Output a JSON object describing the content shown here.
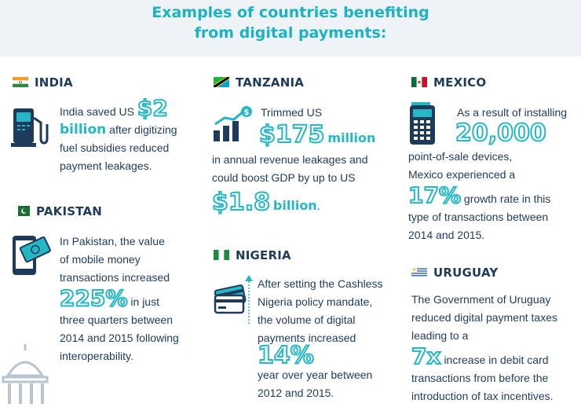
{
  "header": {
    "title_line1": "Examples of countries benefiting",
    "title_line2": "from digital payments:"
  },
  "india": {
    "name": "INDIA",
    "t1": "India saved US",
    "amount": "$2",
    "amount_unit": "billion",
    "t2": "after digitizing",
    "t3": "fuel subsidies reduced",
    "t4": "payment leakages."
  },
  "pakistan": {
    "name": "PAKISTAN",
    "t1": "In Pakistan, the value",
    "t2": "of mobile money",
    "t3": "transactions increased",
    "percent": "225%",
    "t4": "in just",
    "t5": "three quarters between",
    "t6": "2014 and 2015 following",
    "t7": "interoperability."
  },
  "tanzania": {
    "name": "TANZANIA",
    "t1": "Trimmed US",
    "amount": "$175",
    "amount_unit": "million",
    "t2": "in annual revenue leakages and",
    "t3": "could boost GDP by up to US",
    "amount2": "$1.8",
    "amount2_unit": "billion",
    "t4": "."
  },
  "nigeria": {
    "name": "NIGERIA",
    "t1": "After setting the Cashless",
    "t2": "Nigeria policy mandate,",
    "t3": "the volume of digital",
    "t4": "payments increased",
    "percent": "14%",
    "t5": "year over year between",
    "t6": "2012 and 2015."
  },
  "mexico": {
    "name": "MEXICO",
    "t1": "As a result of installing",
    "count": "20,000",
    "t2": "point-of-sale devices,",
    "t3": "Mexico experienced a",
    "percent": "17%",
    "t4": "growth rate in this",
    "t5": "type of transactions between",
    "t6": "2014 and 2015."
  },
  "uruguay": {
    "name": "URUGUAY",
    "t1": "The Government of Uruguay",
    "t2": "reduced digital payment taxes",
    "t3": "leading to a",
    "mult": "7x",
    "t4": "increase in debit card",
    "t5": "transactions from before the",
    "t6": "introduction of tax incentives."
  },
  "colors": {
    "accent": "#26b7c6",
    "text": "#1f3b5c",
    "header_bg": "#eef4f6"
  }
}
